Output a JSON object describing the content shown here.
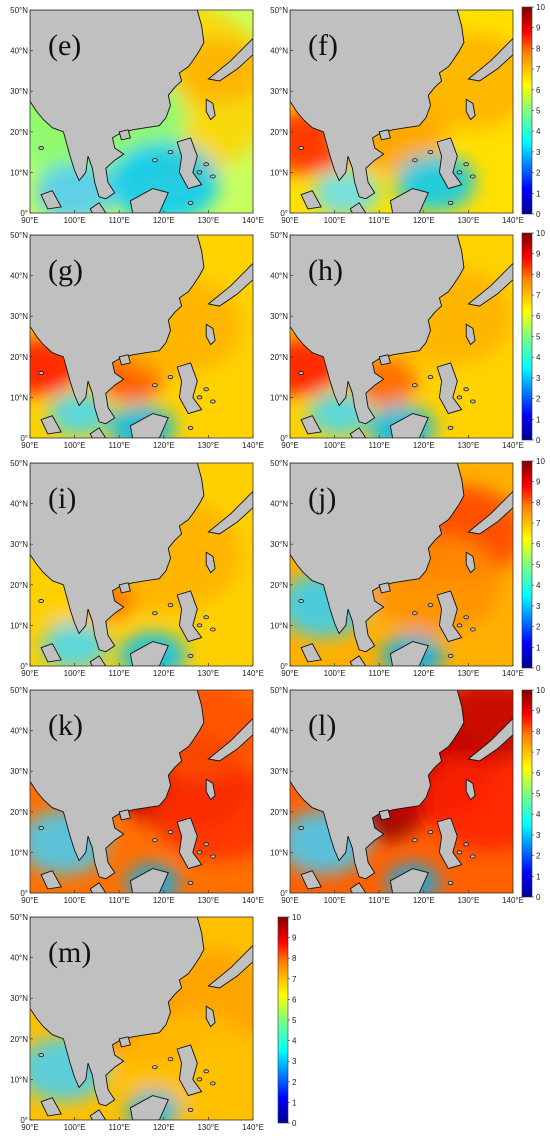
{
  "figure": {
    "panels": [
      {
        "label": "(e)"
      },
      {
        "label": "(f)"
      },
      {
        "label": "(g)"
      },
      {
        "label": "(h)"
      },
      {
        "label": "(i)"
      },
      {
        "label": "(j)"
      },
      {
        "label": "(k)"
      },
      {
        "label": "(l)"
      },
      {
        "label": "(m)"
      }
    ],
    "x_ticks": [
      "90°E",
      "100°E",
      "110°E",
      "120°E",
      "130°E",
      "140°E"
    ],
    "y_ticks": [
      "0°",
      "10°N",
      "20°N",
      "30°N",
      "40°N",
      "50°N"
    ],
    "colorbar_ticks": [
      "0",
      "1",
      "2",
      "3",
      "4",
      "5",
      "6",
      "7",
      "8",
      "9",
      "10"
    ],
    "colors": {
      "land": "#c0c0c0",
      "coast": "#111111",
      "colormap": [
        "#00008f",
        "#0000ff",
        "#0080ff",
        "#00ffff",
        "#80ff80",
        "#ffff00",
        "#ff8000",
        "#ff0000",
        "#800000"
      ]
    }
  }
}
